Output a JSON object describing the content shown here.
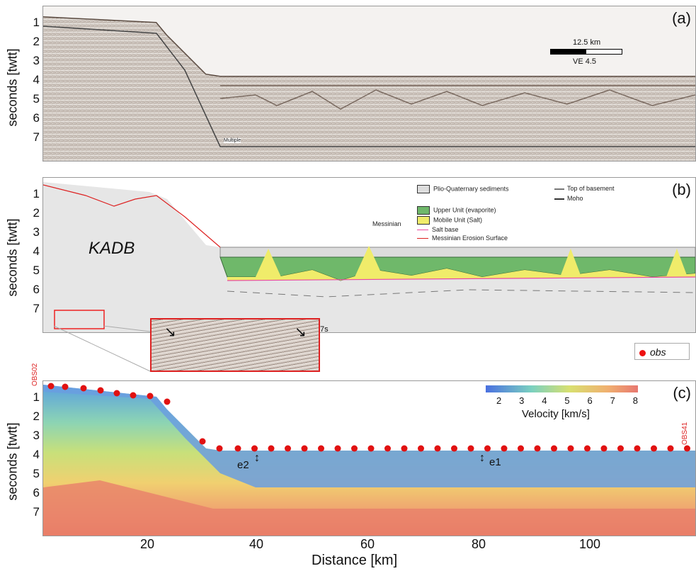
{
  "panels": {
    "a": {
      "label": "(a)",
      "scale_bar": "12.5 km",
      "ve": "VE  4.5",
      "multiple": "Multiple"
    },
    "b": {
      "label": "(b)",
      "region": "KADB",
      "inset_time": "7s",
      "messinian": "Messinian",
      "legend": {
        "plio": "Plio-Quaternary sediments",
        "upper": "Upper Unit (evaporite)",
        "mobile": "Mobile Unit (Salt)",
        "salt_base": "Salt base",
        "erosion": "Messinian Erosion Surface",
        "basement": "Top of basement",
        "moho": "Moho"
      },
      "obs_legend": "obs"
    },
    "c": {
      "label": "(c)",
      "obs_left": "OBS02",
      "obs_right": "OBS41",
      "colorbar_title": "Velocity  [km/s]",
      "colorbar_ticks": [
        "2",
        "3",
        "4",
        "5",
        "6",
        "7",
        "8"
      ],
      "e1": "e1",
      "e2": "e2"
    }
  },
  "axes": {
    "ylabel": "seconds  [twtt]",
    "yticks": [
      "1",
      "2",
      "3",
      "4",
      "5",
      "6",
      "7"
    ],
    "xlabel": "Distance  [km]",
    "xticks": [
      "20",
      "40",
      "60",
      "80",
      "100"
    ]
  },
  "colors": {
    "upper_unit": "#6fb86a",
    "mobile_unit": "#f0ec6a",
    "obs": "#e11111",
    "salt_base": "#e84aa0",
    "erosion": "#d22"
  }
}
